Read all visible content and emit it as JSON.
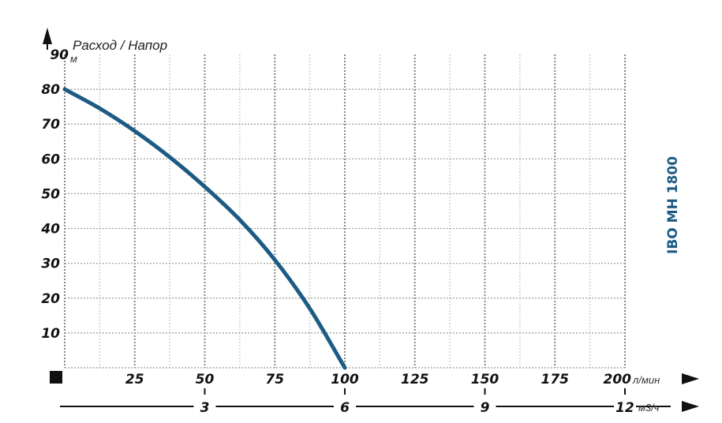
{
  "chart_data": {
    "type": "line",
    "title": "Расход / Напор",
    "model": "IBO MH 1800",
    "xlabel": "л/мин",
    "ylabel": "м",
    "secondary_xlabel": "м3/ч",
    "xlim": [
      0,
      200
    ],
    "ylim": [
      0,
      90
    ],
    "x_ticks": [
      25,
      50,
      75,
      100,
      125,
      150,
      175,
      200
    ],
    "y_ticks": [
      10,
      20,
      30,
      40,
      50,
      60,
      70,
      80,
      90
    ],
    "secondary_x_ticks": [
      3,
      6,
      9,
      12
    ],
    "grid": true,
    "series": [
      {
        "x": [
          0,
          12.5,
          25,
          37.5,
          50,
          62.5,
          75,
          87.5,
          100
        ],
        "y": [
          80,
          74.5,
          68,
          60.5,
          52,
          42.5,
          31,
          17,
          0
        ]
      }
    ],
    "colors": {
      "curve": "#1d5b84",
      "model": "#1d5b84"
    }
  }
}
